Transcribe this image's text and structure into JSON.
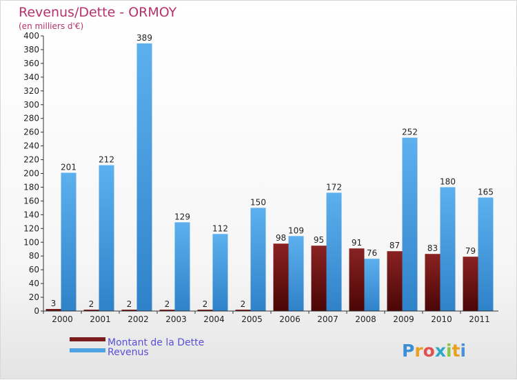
{
  "chart_data": {
    "type": "bar",
    "title": "Revenus/Dette - ORMOY",
    "subtitle": "(en milliers d'€)",
    "categories": [
      "2000",
      "2001",
      "2002",
      "2003",
      "2004",
      "2005",
      "2006",
      "2007",
      "2008",
      "2009",
      "2010",
      "2011"
    ],
    "series": [
      {
        "name": "Montant de la Dette",
        "values": [
          3,
          2,
          2,
          2,
          2,
          2,
          98,
          95,
          91,
          87,
          83,
          79
        ],
        "color": "#7a1c1c"
      },
      {
        "name": "Revenus",
        "values": [
          201,
          212,
          389,
          129,
          112,
          150,
          109,
          172,
          76,
          252,
          180,
          165
        ],
        "color": "#4fa3e3"
      }
    ],
    "ylim": [
      0,
      400
    ],
    "ytick_step": 20,
    "grid": false,
    "legend_position": "bottom-left"
  },
  "logo": {
    "text": "Proxiti"
  },
  "colors": {
    "title": "#b5316b",
    "legend_text": "#5a4fd6",
    "axis": "#333333"
  }
}
